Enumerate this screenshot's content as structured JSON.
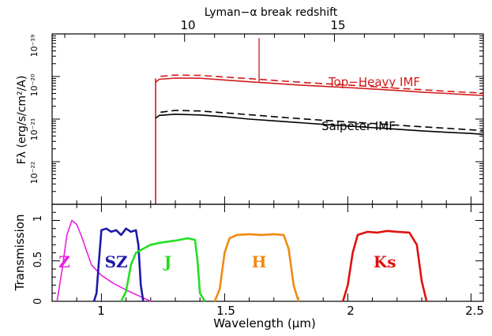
{
  "chart_data": [
    {
      "type": "line",
      "panel": "spectrum",
      "top_axis": {
        "label": "Lyman−α break redshift",
        "ticks": [
          {
            "value": 10,
            "label": "10"
          },
          {
            "value": 15,
            "label": "15"
          }
        ]
      },
      "ylabel": "Fλ (erg/s/cm²/A)",
      "yscale": "log",
      "ylim": [
        1e-23,
        1e-19
      ],
      "yticks": [
        {
          "value": 1e-19,
          "label": "10⁻¹⁹"
        },
        {
          "value": 1e-20,
          "label": "10⁻²⁰"
        },
        {
          "value": 1e-21,
          "label": "10⁻²¹"
        },
        {
          "value": 1e-22,
          "label": "10⁻²²"
        }
      ],
      "xlim": [
        0.8,
        2.55
      ],
      "series": [
        {
          "name": "Top−Heavy IMF",
          "color": "#d11a1a",
          "style": "solid",
          "x": [
            1.22,
            1.235,
            1.3,
            1.4,
            1.5,
            1.6,
            1.7,
            1.8,
            1.9,
            2.0,
            2.1,
            2.2,
            2.3,
            2.4,
            2.5,
            2.55
          ],
          "y": [
            7.3e-21,
            8.6e-21,
            9.2e-21,
            9.1e-21,
            8.3e-21,
            7.5e-21,
            6.9e-21,
            6.3e-21,
            5.9e-21,
            5.5e-21,
            5.1e-21,
            4.7e-21,
            4.3e-21,
            4e-21,
            3.7e-21,
            3.6e-21
          ]
        },
        {
          "name": "Top−Heavy IMF (dashed)",
          "color": "#d11a1a",
          "style": "dashed",
          "x": [
            1.24,
            1.3,
            1.4,
            1.5,
            1.6,
            1.7,
            1.8,
            1.9,
            2.0,
            2.1,
            2.2,
            2.3,
            2.4,
            2.5,
            2.55
          ],
          "y": [
            1.01e-20,
            1.08e-20,
            1.06e-20,
            9.7e-21,
            8.9e-21,
            8.1e-21,
            7.4e-21,
            6.8e-21,
            6.3e-21,
            5.8e-21,
            5.3e-21,
            4.9e-21,
            4.5e-21,
            4.2e-21,
            4.1e-21
          ]
        },
        {
          "name": "Salpeter IMF",
          "color": "#000000",
          "style": "solid",
          "x": [
            1.22,
            1.235,
            1.3,
            1.4,
            1.5,
            1.6,
            1.7,
            1.8,
            1.9,
            2.0,
            2.1,
            2.2,
            2.3,
            2.4,
            2.5,
            2.55
          ],
          "y": [
            1.05e-21,
            1.22e-21,
            1.3e-21,
            1.25e-21,
            1.13e-21,
            1e-21,
            9.1e-22,
            8.3e-22,
            7.5e-22,
            6.9e-22,
            6.3e-22,
            5.8e-22,
            5.3e-22,
            4.9e-22,
            4.6e-22,
            4.4e-22
          ]
        },
        {
          "name": "Salpeter IMF (dashed)",
          "color": "#000000",
          "style": "dashed",
          "x": [
            1.24,
            1.3,
            1.4,
            1.5,
            1.6,
            1.7,
            1.8,
            1.9,
            2.0,
            2.1,
            2.2,
            2.3,
            2.4,
            2.5,
            2.55
          ],
          "y": [
            1.45e-21,
            1.6e-21,
            1.55e-21,
            1.4e-21,
            1.27e-21,
            1.14e-21,
            1.03e-21,
            9.4e-22,
            8.6e-22,
            7.9e-22,
            7.2e-22,
            6.6e-22,
            6.1e-22,
            5.6e-22,
            5.4e-22
          ]
        }
      ],
      "break_line": {
        "x": 1.22,
        "y_from": 1e-23,
        "y_to": 9e-21,
        "color": "#d11a1a"
      },
      "emission_line": {
        "x": 1.64,
        "y_from": 7.5e-21,
        "y_to": 8e-20,
        "color": "#d11a1a"
      },
      "annotations": [
        {
          "text": "Top−Heavy IMF",
          "color": "#d11a1a",
          "x": 2.11,
          "y": 1.05e-20
        },
        {
          "text": "Salpeter IMF",
          "color": "#000000",
          "x": 2.06,
          "y": 1.5e-21
        }
      ]
    },
    {
      "type": "line",
      "panel": "filters",
      "xlabel": "Wavelength (μm)",
      "ylabel": "Transmission",
      "xlim": [
        0.8,
        2.55
      ],
      "ylim": [
        0,
        1.2
      ],
      "xticks": [
        {
          "value": 1.0,
          "label": "1"
        },
        {
          "value": 1.5,
          "label": "1.5"
        },
        {
          "value": 2.0,
          "label": "2"
        },
        {
          "value": 2.5,
          "label": "2.5"
        }
      ],
      "yticks": [
        {
          "value": 0,
          "label": "0"
        },
        {
          "value": 0.5,
          "label": "0.5"
        },
        {
          "value": 1,
          "label": "1"
        }
      ],
      "series": [
        {
          "name": "Z",
          "color": "#e81fe0",
          "label_at": {
            "x": 0.85,
            "y": 0.5
          },
          "x": [
            0.82,
            0.84,
            0.86,
            0.88,
            0.9,
            0.92,
            0.94,
            0.96,
            1.0,
            1.05,
            1.1,
            1.15,
            1.2
          ],
          "y": [
            0.0,
            0.38,
            0.82,
            1.0,
            0.95,
            0.8,
            0.62,
            0.45,
            0.32,
            0.22,
            0.14,
            0.07,
            0.0
          ]
        },
        {
          "name": "SZ",
          "color": "#1a1aa8",
          "label_at": {
            "x": 1.06,
            "y": 0.5
          },
          "x": [
            0.97,
            0.98,
            0.99,
            1.0,
            1.02,
            1.04,
            1.06,
            1.08,
            1.1,
            1.12,
            1.14,
            1.15,
            1.16,
            1.17
          ],
          "y": [
            0.0,
            0.1,
            0.5,
            0.88,
            0.9,
            0.86,
            0.88,
            0.82,
            0.9,
            0.86,
            0.88,
            0.7,
            0.2,
            0.0
          ]
        },
        {
          "name": "J",
          "color": "#22e022",
          "label_at": {
            "x": 1.27,
            "y": 0.5
          },
          "x": [
            1.08,
            1.1,
            1.12,
            1.14,
            1.17,
            1.2,
            1.25,
            1.3,
            1.35,
            1.38,
            1.39,
            1.4,
            1.42
          ],
          "y": [
            0.0,
            0.12,
            0.45,
            0.6,
            0.65,
            0.7,
            0.73,
            0.75,
            0.78,
            0.76,
            0.5,
            0.1,
            0.0
          ]
        },
        {
          "name": "H",
          "color": "#f08a10",
          "label_at": {
            "x": 1.64,
            "y": 0.5
          },
          "x": [
            1.46,
            1.48,
            1.5,
            1.52,
            1.55,
            1.6,
            1.65,
            1.7,
            1.74,
            1.76,
            1.78,
            1.8
          ],
          "y": [
            0.0,
            0.15,
            0.6,
            0.78,
            0.82,
            0.83,
            0.82,
            0.83,
            0.82,
            0.65,
            0.2,
            0.0
          ]
        },
        {
          "name": "Ks",
          "color": "#e01010",
          "label_at": {
            "x": 2.15,
            "y": 0.5
          },
          "x": [
            1.98,
            2.0,
            2.02,
            2.04,
            2.08,
            2.12,
            2.16,
            2.2,
            2.25,
            2.28,
            2.3,
            2.32
          ],
          "y": [
            0.0,
            0.2,
            0.6,
            0.82,
            0.86,
            0.85,
            0.87,
            0.86,
            0.85,
            0.7,
            0.25,
            0.0
          ]
        }
      ]
    }
  ]
}
